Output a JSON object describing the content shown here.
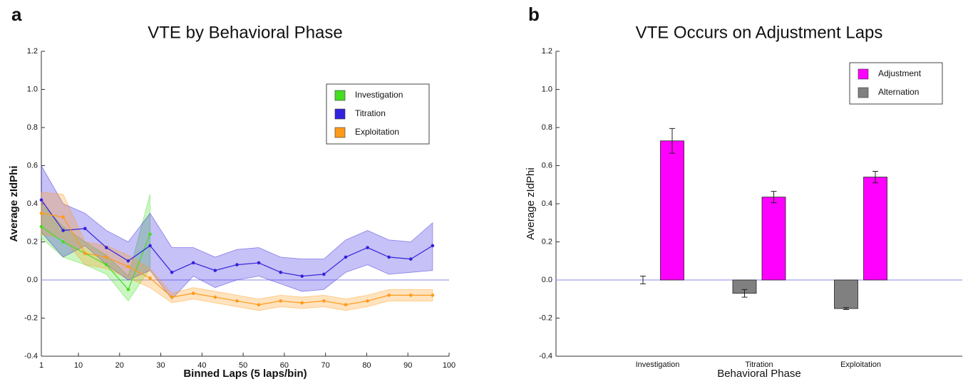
{
  "chart_data": [
    {
      "type": "line",
      "panel_label": "a",
      "title": "VTE by Behavioral Phase",
      "x_label": "Binned Laps (5 laps/bin)",
      "y_label": "Average zIdPhi",
      "x": [
        1,
        6.3,
        11.6,
        16.8,
        22.1,
        27.4,
        32.7,
        37.9,
        43.2,
        48.5,
        53.8,
        59.1,
        64.3,
        69.6,
        74.9,
        80.2,
        85.4,
        90.7,
        96
      ],
      "xlim": [
        1,
        100
      ],
      "xticks": [
        1,
        10,
        20,
        30,
        40,
        50,
        60,
        70,
        80,
        90,
        100
      ],
      "ylim": [
        -0.4,
        1.2
      ],
      "yticks": [
        -0.4,
        -0.2,
        {
          "value": 0,
          "label": "0.0"
        },
        0.2,
        0.4,
        0.6,
        0.8,
        {
          "value": 1,
          "label": "1.0"
        },
        1.2
      ],
      "reference_line": 0,
      "legend": "upper right",
      "series": [
        {
          "name": "Investigation",
          "color": "#44dd22",
          "values": [
            0.28,
            0.2,
            0.14,
            0.08,
            -0.05,
            0.24,
            null,
            null,
            null,
            null,
            null,
            null,
            null,
            null,
            null,
            null,
            null,
            null,
            null
          ],
          "upper": [
            0.4,
            0.28,
            0.2,
            0.13,
            0.02,
            0.45,
            null,
            null,
            null,
            null,
            null,
            null,
            null,
            null,
            null,
            null,
            null,
            null,
            null
          ],
          "lower": [
            0.22,
            0.12,
            0.08,
            0.03,
            -0.11,
            0.06,
            null,
            null,
            null,
            null,
            null,
            null,
            null,
            null,
            null,
            null,
            null,
            null,
            null
          ]
        },
        {
          "name": "Titration",
          "color": "#3322dd",
          "values": [
            0.42,
            0.26,
            0.27,
            0.17,
            0.1,
            0.18,
            0.04,
            0.09,
            0.05,
            0.08,
            0.09,
            0.04,
            0.02,
            0.03,
            0.12,
            0.17,
            0.12,
            0.11,
            0.18
          ],
          "upper": [
            0.6,
            0.4,
            0.35,
            0.26,
            0.2,
            0.35,
            0.17,
            0.17,
            0.12,
            0.16,
            0.17,
            0.12,
            0.11,
            0.11,
            0.21,
            0.26,
            0.21,
            0.2,
            0.3
          ],
          "lower": [
            0.25,
            0.12,
            0.18,
            0.08,
            0.0,
            0.05,
            -0.1,
            0.02,
            -0.04,
            0.0,
            0.02,
            -0.02,
            -0.06,
            -0.05,
            0.04,
            0.08,
            0.03,
            0.04,
            0.05
          ]
        },
        {
          "name": "Exploitation",
          "color": "#ff9a1a",
          "values": [
            0.35,
            0.33,
            0.14,
            0.12,
            0.07,
            0.01,
            -0.09,
            -0.07,
            -0.09,
            -0.11,
            -0.13,
            -0.11,
            -0.12,
            -0.11,
            -0.13,
            -0.11,
            -0.08,
            -0.08,
            -0.08
          ],
          "upper": [
            0.46,
            0.45,
            0.2,
            0.18,
            0.13,
            0.06,
            -0.07,
            -0.04,
            -0.06,
            -0.08,
            -0.1,
            -0.08,
            -0.09,
            -0.08,
            -0.1,
            -0.08,
            -0.05,
            -0.05,
            -0.05
          ],
          "lower": [
            0.24,
            0.22,
            0.08,
            0.06,
            0.01,
            -0.04,
            -0.12,
            -0.1,
            -0.12,
            -0.14,
            -0.16,
            -0.14,
            -0.15,
            -0.14,
            -0.16,
            -0.14,
            -0.11,
            -0.11,
            -0.11
          ]
        }
      ]
    },
    {
      "type": "bar",
      "panel_label": "b",
      "title": "VTE Occurs on Adjustment Laps",
      "x_label": "Behavioral Phase",
      "y_label": "Average zIdPhi",
      "categories": [
        "Investigation",
        "Titration",
        "Exploitation"
      ],
      "ylim": [
        -0.4,
        1.2
      ],
      "yticks": [
        -0.4,
        -0.2,
        {
          "value": 0,
          "label": "0.0"
        },
        0.2,
        0.4,
        0.6,
        0.8,
        {
          "value": 1,
          "label": "1.0"
        },
        1.2
      ],
      "reference_line": 0,
      "legend": "upper right",
      "series": [
        {
          "name": "Adjustment",
          "color": "#ff00ff",
          "values": [
            0.73,
            0.435,
            0.54
          ],
          "errors": [
            0.065,
            0.03,
            0.03
          ]
        },
        {
          "name": "Alternation",
          "color": "#808080",
          "values": [
            0.0,
            -0.07,
            -0.15
          ],
          "errors": [
            0.02,
            0.02,
            0.005
          ]
        }
      ]
    }
  ]
}
